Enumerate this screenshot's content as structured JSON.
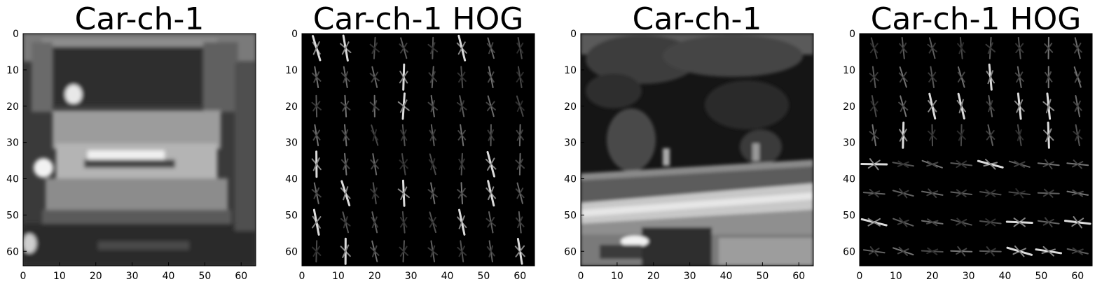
{
  "figure": {
    "panels": [
      {
        "title": "Car-ch-1",
        "image": "grayscale front view of a car, channel 1",
        "xticks": [
          "0",
          "10",
          "20",
          "30",
          "40",
          "50",
          "60"
        ],
        "yticks": [
          "0",
          "10",
          "20",
          "30",
          "40",
          "50",
          "60"
        ]
      },
      {
        "title": "Car-ch-1 HOG",
        "image": "HOG visualization of car channel 1",
        "xticks": [
          "0",
          "10",
          "20",
          "30",
          "40",
          "50",
          "60"
        ],
        "yticks": [
          "0",
          "10",
          "20",
          "30",
          "40",
          "50",
          "60"
        ]
      },
      {
        "title": "Car-ch-1",
        "image": "grayscale road scene with guard rail and trees",
        "xticks": [
          "0",
          "10",
          "20",
          "30",
          "40",
          "50",
          "60"
        ],
        "yticks": [
          "0",
          "10",
          "20",
          "30",
          "40",
          "50",
          "60"
        ]
      },
      {
        "title": "Car-ch-1 HOG",
        "image": "HOG visualization of road scene channel 1",
        "xticks": [
          "0",
          "10",
          "20",
          "30",
          "40",
          "50",
          "60"
        ],
        "yticks": [
          "0",
          "10",
          "20",
          "30",
          "40",
          "50",
          "60"
        ]
      }
    ],
    "axis_range": [
      0,
      64
    ]
  }
}
